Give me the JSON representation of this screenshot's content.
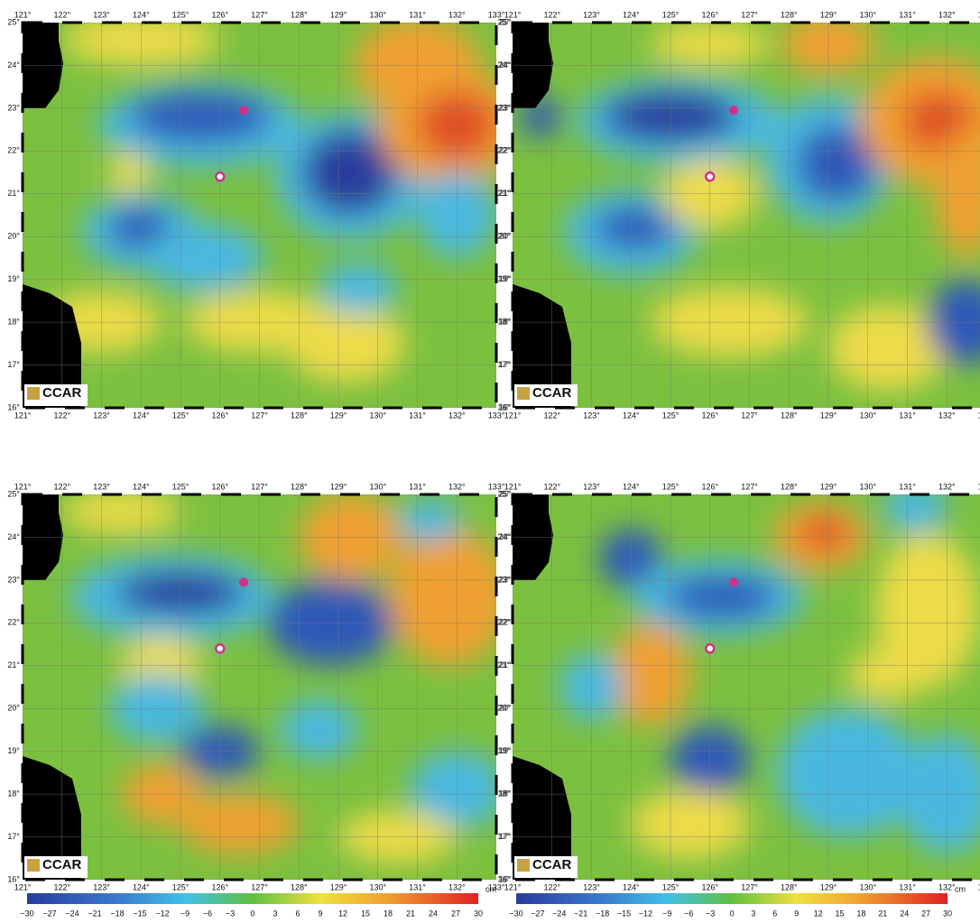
{
  "lon_labels": [
    "121°",
    "122°",
    "123°",
    "124°",
    "125°",
    "126°",
    "127°",
    "128°",
    "129°",
    "130°",
    "131°",
    "132°",
    "133°"
  ],
  "lat_labels": [
    "16°",
    "17°",
    "18°",
    "19°",
    "20°",
    "21°",
    "22°",
    "23°",
    "24°",
    "25°"
  ],
  "logo": "CCAR",
  "colorbar": {
    "ticks": [
      "−30",
      "−27",
      "−24",
      "−21",
      "−18",
      "−15",
      "−12",
      "−9",
      "−6",
      "−3",
      "0",
      "3",
      "6",
      "9",
      "12",
      "15",
      "18",
      "21",
      "24",
      "27",
      "30"
    ],
    "unit": "cm"
  }
}
